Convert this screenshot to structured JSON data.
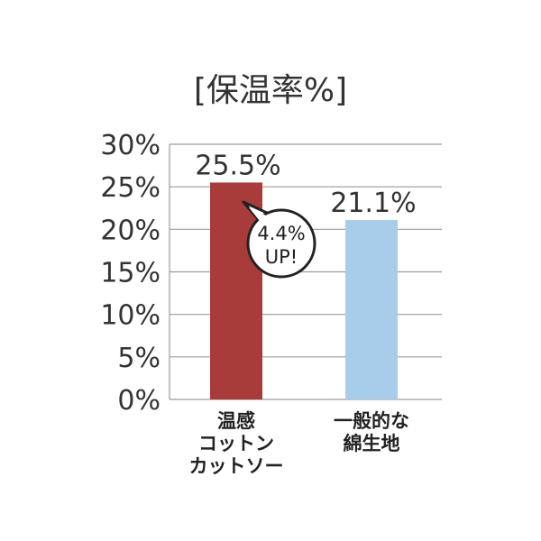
{
  "chart_data": {
    "type": "bar",
    "title": "[保温率%]",
    "ylabel": "",
    "xlabel": "",
    "ylim": [
      0,
      30
    ],
    "y_ticks": [
      0,
      5,
      10,
      15,
      20,
      25,
      30
    ],
    "y_tick_labels": [
      "0%",
      "5%",
      "10%",
      "15%",
      "20%",
      "25%",
      "30%"
    ],
    "grid": true,
    "categories": [
      [
        "温感",
        "コットン",
        "カットソー"
      ],
      [
        "一般的な",
        "綿生地"
      ]
    ],
    "values": [
      25.5,
      21.1
    ],
    "value_labels": [
      "25.5%",
      "21.1%"
    ],
    "bar_colors": [
      "#a83c3a",
      "#a8cdea"
    ],
    "annotation": {
      "lines": [
        "4.4%",
        "UP!"
      ],
      "near_category": 0
    }
  }
}
